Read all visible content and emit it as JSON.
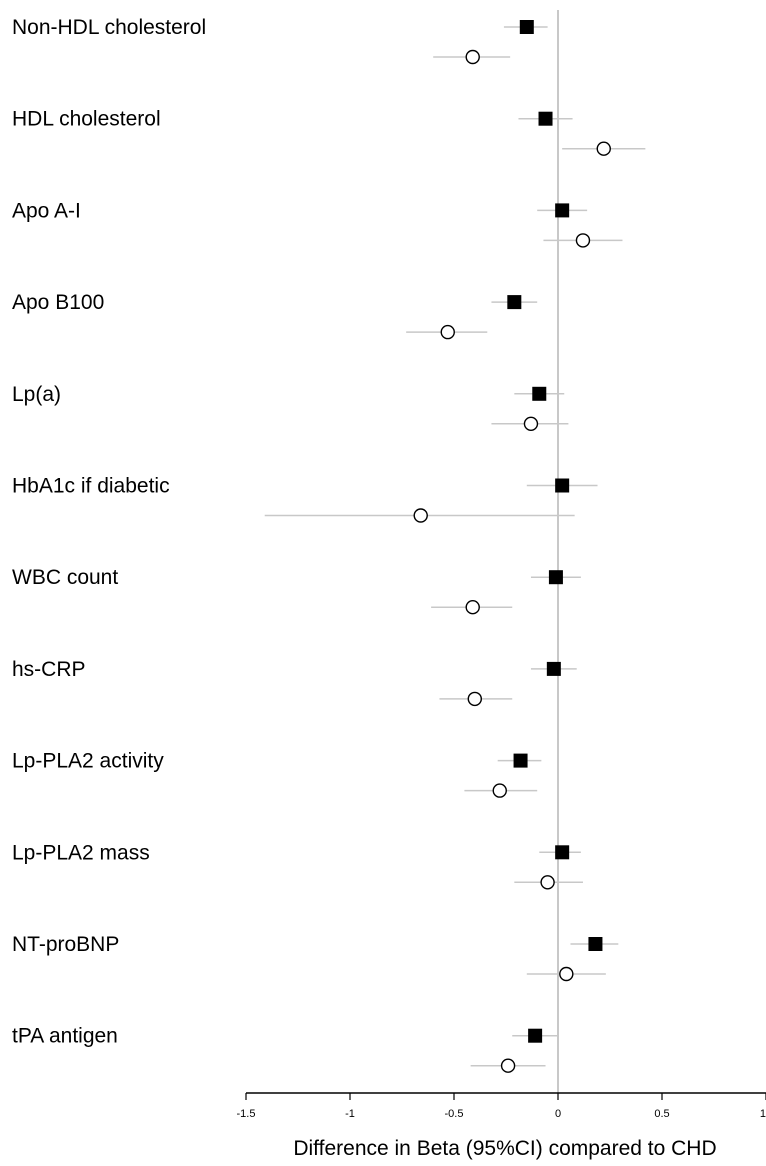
{
  "chart_data": {
    "type": "forest",
    "title": "",
    "xlabel": "Difference in Beta (95%CI) compared to CHD",
    "xlim": [
      -1.5,
      1
    ],
    "xticks": [
      -1.5,
      -1,
      -0.5,
      0,
      0.5,
      1
    ],
    "xtick_labels": [
      "-1.5",
      "-1",
      "-0.5",
      "0",
      "0.5",
      "1"
    ],
    "reference_line": 0,
    "categories": [
      "Non-HDL cholesterol",
      "HDL cholesterol",
      "Apo A-I",
      "Apo B100",
      "Lp(a)",
      "HbA1c if diabetic",
      "WBC count",
      "hs-CRP",
      "Lp-PLA2 activity",
      "Lp-PLA2 mass",
      "NT-proBNP",
      "tPA antigen"
    ],
    "series": [
      {
        "marker": "filled-square",
        "color": "#000000",
        "estimates": [
          -0.15,
          -0.06,
          0.02,
          -0.21,
          -0.09,
          0.02,
          -0.01,
          -0.02,
          -0.18,
          0.02,
          0.18,
          -0.11
        ],
        "ci_low": [
          -0.26,
          -0.19,
          -0.1,
          -0.32,
          -0.21,
          -0.15,
          -0.13,
          -0.13,
          -0.29,
          -0.09,
          0.06,
          -0.22
        ],
        "ci_high": [
          -0.05,
          0.07,
          0.14,
          -0.1,
          0.03,
          0.19,
          0.11,
          0.09,
          -0.08,
          0.11,
          0.29,
          0.0
        ]
      },
      {
        "marker": "open-circle",
        "color": "#000000",
        "estimates": [
          -0.41,
          0.22,
          0.12,
          -0.53,
          -0.13,
          -0.66,
          -0.41,
          -0.4,
          -0.28,
          -0.05,
          0.04,
          -0.24
        ],
        "ci_low": [
          -0.6,
          0.02,
          -0.07,
          -0.73,
          -0.32,
          -1.41,
          -0.61,
          -0.57,
          -0.45,
          -0.21,
          -0.15,
          -0.42
        ],
        "ci_high": [
          -0.23,
          0.42,
          0.31,
          -0.34,
          0.05,
          0.08,
          -0.22,
          -0.22,
          -0.1,
          0.12,
          0.23,
          -0.06
        ]
      }
    ],
    "ci_color": "#c8c8c8",
    "grid": false,
    "legend": "none"
  }
}
